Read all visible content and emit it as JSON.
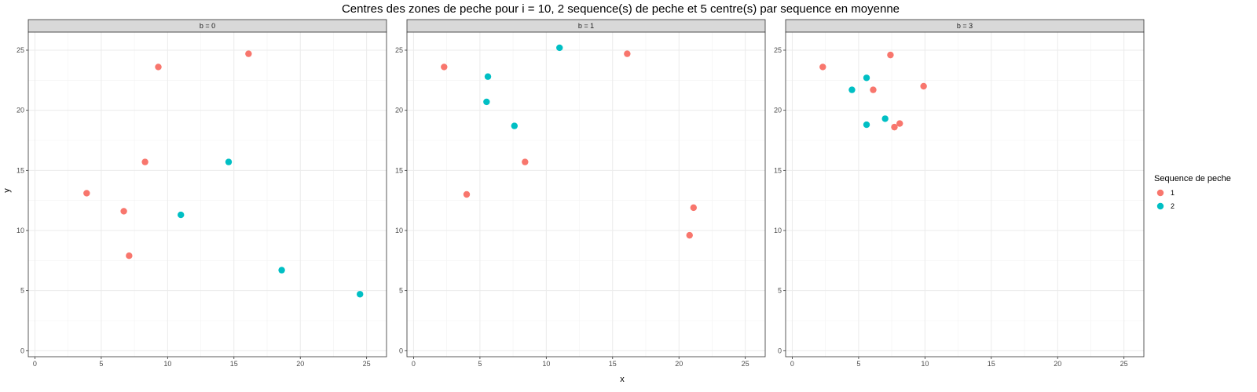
{
  "chart_data": {
    "type": "scatter",
    "title": "Centres des zones de peche pour i = 10, 2 sequence(s) de peche et 5 centre(s) par sequence en moyenne",
    "xlabel": "x",
    "ylabel": "y",
    "xlim": [
      -0.5,
      26.5
    ],
    "ylim": [
      -0.5,
      26.5
    ],
    "x_ticks": [
      0,
      5,
      10,
      15,
      20,
      25
    ],
    "y_ticks": [
      0,
      5,
      10,
      15,
      20,
      25
    ],
    "grid": true,
    "legend": {
      "title": "Sequence de peche",
      "placement": "right",
      "entries": [
        {
          "label": "1",
          "color": "#F8766D"
        },
        {
          "label": "2",
          "color": "#00BFC4"
        }
      ]
    },
    "panels": [
      {
        "label": "b = 0",
        "series": [
          {
            "name": "1",
            "color": "#F8766D",
            "points": [
              [
                3.9,
                13.1
              ],
              [
                6.7,
                11.6
              ],
              [
                7.1,
                7.9
              ],
              [
                8.3,
                15.7
              ],
              [
                9.3,
                23.6
              ],
              [
                16.1,
                24.7
              ]
            ]
          },
          {
            "name": "2",
            "color": "#00BFC4",
            "points": [
              [
                11.0,
                11.3
              ],
              [
                14.6,
                15.7
              ],
              [
                18.6,
                6.7
              ],
              [
                24.5,
                4.7
              ]
            ]
          }
        ]
      },
      {
        "label": "b = 1",
        "series": [
          {
            "name": "1",
            "color": "#F8766D",
            "points": [
              [
                2.3,
                23.6
              ],
              [
                4.0,
                13.0
              ],
              [
                8.4,
                15.7
              ],
              [
                16.1,
                24.7
              ],
              [
                21.1,
                11.9
              ],
              [
                20.8,
                9.6
              ]
            ]
          },
          {
            "name": "2",
            "color": "#00BFC4",
            "points": [
              [
                5.6,
                22.8
              ],
              [
                5.5,
                20.7
              ],
              [
                7.6,
                18.7
              ],
              [
                11.0,
                25.2
              ]
            ]
          }
        ]
      },
      {
        "label": "b = 3",
        "series": [
          {
            "name": "1",
            "color": "#F8766D",
            "points": [
              [
                2.3,
                23.6
              ],
              [
                6.1,
                21.7
              ],
              [
                7.4,
                24.6
              ],
              [
                7.7,
                18.6
              ],
              [
                8.1,
                18.9
              ],
              [
                9.9,
                22.0
              ]
            ]
          },
          {
            "name": "2",
            "color": "#00BFC4",
            "points": [
              [
                4.5,
                21.7
              ],
              [
                5.6,
                22.7
              ],
              [
                5.6,
                18.8
              ],
              [
                7.0,
                19.3
              ]
            ]
          }
        ]
      }
    ]
  }
}
